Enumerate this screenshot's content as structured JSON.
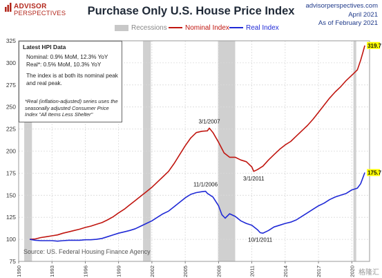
{
  "header": {
    "logo_line1": "ADVISOR",
    "logo_line2": "PERSPECTIVES",
    "site": "advisorperspectives.com",
    "date": "April 2021",
    "as_of": "As of February 2021"
  },
  "legend": {
    "recessions": "Recessions",
    "nominal": "Nominal Index",
    "real": "Real Index"
  },
  "infobox": {
    "title": "Latest HPI Data",
    "nominal_line": "Nominal: 0.9% MoM, 12.3% YoY",
    "real_line": "Real*:  0.5% MoM, 10.3% YoY",
    "peak_line1": "The index is at both its nominal peak",
    "peak_line2": "and real peak.",
    "note": "*Real (inflation-adjusted) series uses the seasonally adjusted Consumer Price Index \"All Items Less Shelter\""
  },
  "source": "Source: US. Federal Housing Finance Agency",
  "watermark": "格隆汇",
  "colors": {
    "nominal": "#c0150f",
    "real": "#1f29d6",
    "recession": "#c8c8c8",
    "end_label_bg": "#ffff00"
  },
  "chart_data": {
    "type": "line",
    "title": "Purchase Only U.S. House Price Index",
    "xlabel": "",
    "ylabel": "",
    "xlim": [
      1990,
      2021.6
    ],
    "ylim": [
      75,
      325
    ],
    "x_ticks": [
      1990,
      1993,
      1996,
      1999,
      2002,
      2005,
      2008,
      2011,
      2014,
      2017,
      2020
    ],
    "y_ticks": [
      75,
      100,
      125,
      150,
      175,
      200,
      225,
      250,
      275,
      300,
      325
    ],
    "grid": true,
    "recessions": [
      [
        1990.5,
        1991.2
      ],
      [
        2001.2,
        2001.9
      ],
      [
        2007.95,
        2009.5
      ],
      [
        2020.15,
        2020.4
      ]
    ],
    "series": [
      {
        "name": "Nominal Index",
        "x": [
          1991.0,
          1991.5,
          1992.0,
          1992.5,
          1993.0,
          1993.5,
          1994.0,
          1994.5,
          1995.0,
          1995.5,
          1996.0,
          1996.5,
          1997.0,
          1997.5,
          1998.0,
          1998.5,
          1999.0,
          1999.5,
          2000.0,
          2000.5,
          2001.0,
          2001.5,
          2002.0,
          2002.5,
          2003.0,
          2003.5,
          2004.0,
          2004.5,
          2005.0,
          2005.5,
          2006.0,
          2006.5,
          2007.0,
          2007.17,
          2007.5,
          2008.0,
          2008.5,
          2009.0,
          2009.5,
          2010.0,
          2010.5,
          2011.0,
          2011.17,
          2011.5,
          2012.0,
          2012.5,
          2013.0,
          2013.5,
          2014.0,
          2014.5,
          2015.0,
          2015.5,
          2016.0,
          2016.5,
          2017.0,
          2017.5,
          2018.0,
          2018.5,
          2019.0,
          2019.5,
          2020.0,
          2020.5,
          2020.8,
          2021.0,
          2021.17
        ],
        "values": [
          100.0,
          100.5,
          102.0,
          103.0,
          104.0,
          105.0,
          107.0,
          108.5,
          110.0,
          111.5,
          113.5,
          115.0,
          117.0,
          119.0,
          122.0,
          125.5,
          130.0,
          134.0,
          139.0,
          144.0,
          149.0,
          154.0,
          159.0,
          165.0,
          171.0,
          177.0,
          186.0,
          196.0,
          206.0,
          215.0,
          221.0,
          222.5,
          223.0,
          226.0,
          221.0,
          210.0,
          198.0,
          193.0,
          193.0,
          190.0,
          188.0,
          182.0,
          177.0,
          179.0,
          183.0,
          190.0,
          196.0,
          202.0,
          207.0,
          211.0,
          217.0,
          223.0,
          229.0,
          236.0,
          244.0,
          252.0,
          260.0,
          267.0,
          273.0,
          280.0,
          286.0,
          292.0,
          303.0,
          312.0,
          319.7
        ]
      },
      {
        "name": "Real Index",
        "x": [
          1991.0,
          1991.5,
          1992.0,
          1992.5,
          1993.0,
          1993.5,
          1994.0,
          1994.5,
          1995.0,
          1995.5,
          1996.0,
          1996.5,
          1997.0,
          1997.5,
          1998.0,
          1998.5,
          1999.0,
          1999.5,
          2000.0,
          2000.5,
          2001.0,
          2001.5,
          2002.0,
          2002.5,
          2003.0,
          2003.5,
          2004.0,
          2004.5,
          2005.0,
          2005.5,
          2006.0,
          2006.5,
          2006.83,
          2007.0,
          2007.5,
          2008.0,
          2008.3,
          2008.6,
          2009.0,
          2009.5,
          2010.0,
          2010.5,
          2011.0,
          2011.5,
          2011.75,
          2012.0,
          2012.5,
          2013.0,
          2013.5,
          2014.0,
          2014.5,
          2015.0,
          2015.5,
          2016.0,
          2016.5,
          2017.0,
          2017.5,
          2018.0,
          2018.5,
          2019.0,
          2019.5,
          2020.0,
          2020.5,
          2020.8,
          2021.0,
          2021.17
        ],
        "values": [
          100.0,
          99.0,
          98.5,
          98.5,
          98.5,
          98.0,
          98.5,
          99.0,
          99.0,
          99.0,
          99.5,
          99.5,
          100.0,
          101.0,
          103.0,
          105.0,
          107.0,
          108.5,
          110.0,
          112.0,
          115.0,
          118.0,
          121.0,
          125.0,
          129.0,
          132.0,
          137.0,
          142.0,
          147.0,
          151.0,
          153.0,
          154.0,
          154.5,
          152.0,
          148.0,
          138.0,
          128.0,
          124.0,
          129.0,
          126.0,
          121.0,
          118.0,
          116.0,
          111.0,
          107.5,
          107.0,
          110.0,
          114.0,
          116.0,
          118.0,
          119.5,
          122.0,
          126.0,
          130.0,
          134.0,
          138.0,
          141.0,
          145.0,
          148.0,
          150.0,
          152.0,
          156.0,
          158.0,
          163.0,
          170.0,
          175.7
        ]
      }
    ],
    "annotations": [
      {
        "text": "3/1/2007",
        "x": 2007.17,
        "y": 226.0,
        "series": "Nominal Index",
        "pos": "above"
      },
      {
        "text": "3/1/2011",
        "x": 2011.17,
        "y": 177.0,
        "series": "Nominal Index",
        "pos": "below"
      },
      {
        "text": "11/1/2006",
        "x": 2006.83,
        "y": 154.5,
        "series": "Real Index",
        "pos": "above"
      },
      {
        "text": "10/1/2011",
        "x": 2011.75,
        "y": 107.5,
        "series": "Real Index",
        "pos": "below"
      }
    ],
    "end_labels": [
      {
        "text": "319.7",
        "series": "Nominal Index",
        "y": 319.7
      },
      {
        "text": "175.7",
        "series": "Real Index",
        "y": 175.7
      }
    ]
  }
}
